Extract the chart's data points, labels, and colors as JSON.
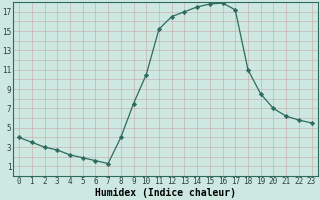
{
  "x": [
    0,
    1,
    2,
    3,
    4,
    5,
    6,
    7,
    8,
    9,
    10,
    11,
    12,
    13,
    14,
    15,
    16,
    17,
    18,
    19,
    20,
    21,
    22,
    23
  ],
  "y": [
    4.0,
    3.5,
    3.0,
    2.7,
    2.2,
    1.9,
    1.6,
    1.3,
    4.0,
    7.5,
    10.5,
    15.2,
    16.5,
    17.0,
    17.5,
    17.8,
    17.9,
    17.2,
    11.0,
    8.5,
    7.0,
    6.2,
    5.8,
    5.5
  ],
  "line_color": "#2e6b5e",
  "marker": "D",
  "marker_size": 2.2,
  "bg_color": "#cce8e0",
  "grid_color": "#b8d8d0",
  "xlabel": "Humidex (Indice chaleur)",
  "xlim": [
    -0.5,
    23.5
  ],
  "ylim": [
    0,
    18
  ],
  "ytick_major": [
    1,
    3,
    5,
    7,
    9,
    11,
    13,
    15,
    17
  ],
  "ytick_minor_step": 1,
  "xticks": [
    0,
    1,
    2,
    3,
    4,
    5,
    6,
    7,
    8,
    9,
    10,
    11,
    12,
    13,
    14,
    15,
    16,
    17,
    18,
    19,
    20,
    21,
    22,
    23
  ],
  "tick_labelsize": 5.5,
  "xlabel_fontsize": 7.0,
  "linewidth": 0.9
}
